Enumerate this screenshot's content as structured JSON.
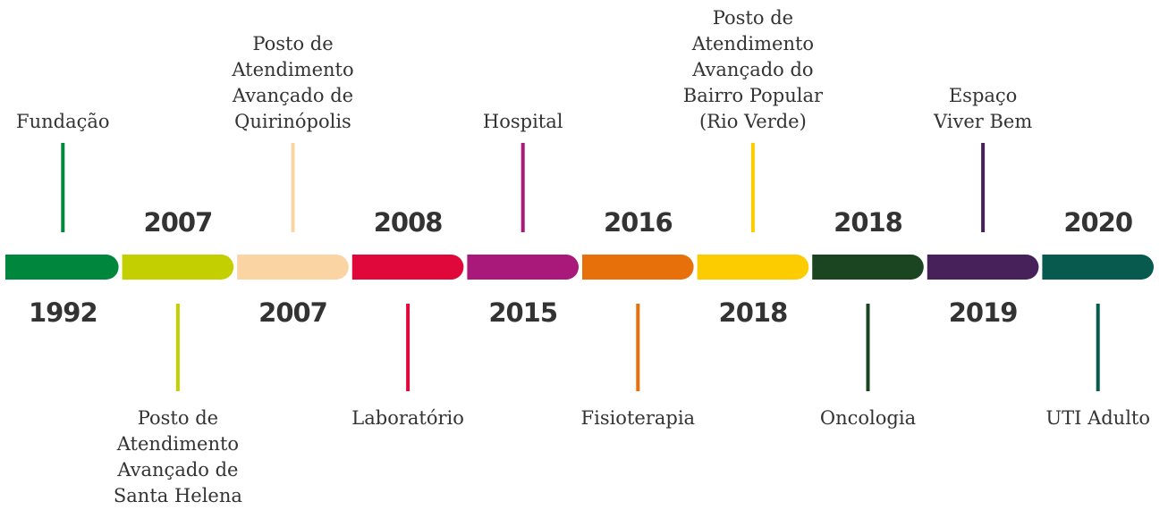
{
  "events": [
    {
      "year": "1992",
      "label": [
        "Fundação"
      ],
      "color": "#00873e"
    },
    {
      "year": "2007",
      "label": [
        "Posto de",
        "Atendimento",
        "Avançado de",
        "Santa Helena"
      ],
      "color": "#c4cf00"
    },
    {
      "year": "2007",
      "label": [
        "Posto de",
        "Atendimento",
        "Avançado de",
        "Quirinópolis"
      ],
      "color": "#fbd4a4"
    },
    {
      "year": "2008",
      "label": [
        "Laboratório"
      ],
      "color": "#e0073a"
    },
    {
      "year": "2015",
      "label": [
        "Hospital"
      ],
      "color": "#a8197a"
    },
    {
      "year": "2016",
      "label": [
        "Fisioterapia"
      ],
      "color": "#e8700a"
    },
    {
      "year": "2018",
      "label": [
        "Posto de",
        "Atendimento",
        "Avançado do",
        "Bairro Popular",
        "(Rio Verde)"
      ],
      "color": "#fccc00"
    },
    {
      "year": "2018",
      "label": [
        "Oncologia"
      ],
      "color": "#1b4421"
    },
    {
      "year": "2019",
      "label": [
        "Espaço",
        "Viver Bem"
      ],
      "color": "#47215a"
    },
    {
      "year": "2020",
      "label": [
        "UTI Adulto"
      ],
      "color": "#075a4d"
    }
  ]
}
